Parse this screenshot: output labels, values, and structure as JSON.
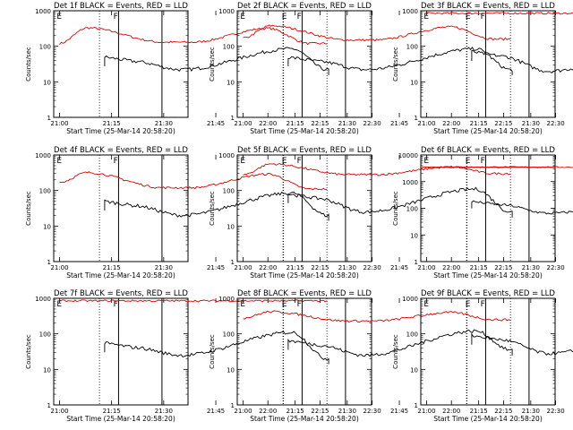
{
  "colors": {
    "events": "#000000",
    "lld": "#dd0000",
    "axis": "#000000"
  },
  "common": {
    "x_ticks": [
      "21:00",
      "21:15",
      "21:30",
      "21:45",
      "22:00",
      "22:15",
      "22:30"
    ],
    "xlabel": "Start Time (25-Mar-14 20:58:20)",
    "ylabel": "Counts/sec",
    "y_scale": "log",
    "marker_letters": [
      "E",
      "F",
      "E"
    ]
  },
  "chart_data": [
    {
      "type": "line",
      "title": "Det 1f BLACK = Events, RED = LLD",
      "ylim": [
        1,
        1000
      ],
      "y_ticks": [
        "1",
        "10",
        "100",
        "1000"
      ],
      "events": {
        "start": 50,
        "min": 22,
        "peak": 85,
        "end": 22
      },
      "lld": {
        "start": 120,
        "peak": 330,
        "min": 130,
        "peak2": 320,
        "end": 120
      },
      "series": [
        {
          "name": "Events",
          "color": "black"
        },
        {
          "name": "LLD",
          "color": "red"
        }
      ]
    },
    {
      "type": "line",
      "title": "Det 2f BLACK = Events, RED = LLD",
      "ylim": [
        1,
        1000
      ],
      "y_ticks": [
        "1",
        "10",
        "100",
        "1000"
      ],
      "events": {
        "start": 50,
        "min": 22,
        "peak": 85,
        "end": 22
      },
      "lld": {
        "start": 170,
        "peak": 380,
        "min": 150,
        "peak2": 350,
        "end": 160
      },
      "series": [
        {
          "name": "Events",
          "color": "black"
        },
        {
          "name": "LLD",
          "color": "red"
        }
      ]
    },
    {
      "type": "line",
      "title": "Det 3f BLACK = Events, RED = LLD",
      "ylim": [
        1,
        1000
      ],
      "y_ticks": [
        "1",
        "10",
        "100",
        "1000"
      ],
      "events": {
        "start": 70,
        "min": 20,
        "peak": 90,
        "end": 20
      },
      "lld": {
        "flat": 850
      },
      "series": [
        {
          "name": "Events",
          "color": "black"
        },
        {
          "name": "LLD",
          "color": "red"
        }
      ]
    },
    {
      "type": "line",
      "title": "Det 4f BLACK = Events, RED = LLD",
      "ylim": [
        1,
        1000
      ],
      "y_ticks": [
        "1",
        "10",
        "100",
        "1000"
      ],
      "events": {
        "start": 50,
        "min": 20,
        "peak": 85,
        "end": 20
      },
      "lld": {
        "start": 170,
        "peak": 320,
        "min": 120,
        "peak2": 290,
        "end": 110
      },
      "series": [
        {
          "name": "Events",
          "color": "black"
        },
        {
          "name": "LLD",
          "color": "red"
        }
      ]
    },
    {
      "type": "line",
      "title": "Det 5f BLACK = Events, RED = LLD",
      "ylim": [
        1,
        1000
      ],
      "y_ticks": [
        "1",
        "10",
        "100",
        "1000"
      ],
      "events": {
        "start": 80,
        "min": 25,
        "peak": 110,
        "end": 25
      },
      "lld": {
        "start": 280,
        "peak": 560,
        "min": 280,
        "peak2": 460,
        "end": 300
      },
      "series": [
        {
          "name": "Events",
          "color": "black"
        },
        {
          "name": "LLD",
          "color": "red"
        }
      ]
    },
    {
      "type": "line",
      "title": "Det 6f BLACK = Events, RED = LLD",
      "ylim": [
        1,
        10000
      ],
      "y_ticks": [
        "1",
        "10",
        "100",
        "1000",
        "10000"
      ],
      "events": {
        "start": 180,
        "min": 65,
        "peak": 200,
        "end": 50
      },
      "lld": {
        "flat": 3500
      },
      "series": [
        {
          "name": "Events",
          "color": "black"
        },
        {
          "name": "LLD",
          "color": "red"
        }
      ]
    },
    {
      "type": "line",
      "title": "Det 7f BLACK = Events, RED = LLD",
      "ylim": [
        1,
        1000
      ],
      "y_ticks": [
        "1",
        "10",
        "100",
        "1000"
      ],
      "events": {
        "start": 55,
        "min": 25,
        "peak": 110,
        "end": 20
      },
      "lld": {
        "flat": 850
      },
      "series": [
        {
          "name": "Events",
          "color": "black"
        },
        {
          "name": "LLD",
          "color": "red"
        }
      ]
    },
    {
      "type": "line",
      "title": "Det 8f BLACK = Events, RED = LLD",
      "ylim": [
        1,
        1000
      ],
      "y_ticks": [
        "1",
        "10",
        "100",
        "1000"
      ],
      "events": {
        "start": 65,
        "min": 25,
        "peak": 120,
        "end": 35
      },
      "lld": {
        "start": 280,
        "peak": 420,
        "min": 230,
        "peak2": 400,
        "end": 250
      },
      "series": [
        {
          "name": "Events",
          "color": "black"
        },
        {
          "name": "LLD",
          "color": "red"
        }
      ]
    },
    {
      "type": "line",
      "title": "Det 9f BLACK = Events, RED = LLD",
      "ylim": [
        1,
        1000
      ],
      "y_ticks": [
        "1",
        "10",
        "100",
        "1000"
      ],
      "events": {
        "start": 90,
        "min": 28,
        "peak": 100,
        "end": 40
      },
      "lld": null,
      "series": [
        {
          "name": "Events",
          "color": "black"
        }
      ]
    }
  ]
}
